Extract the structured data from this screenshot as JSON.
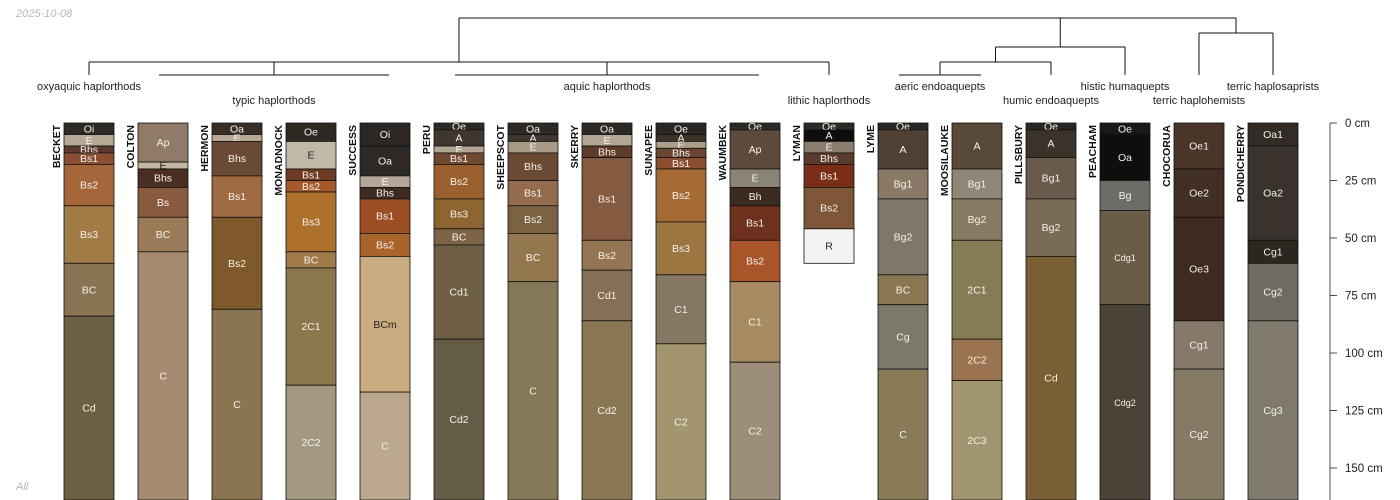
{
  "date_stamp": "2025-10-08",
  "corner_label": "All",
  "depth_axis": {
    "unit": "cm",
    "max_depth": 160,
    "ticks": [
      {
        "depth": 0,
        "label": "0 cm"
      },
      {
        "depth": 25,
        "label": "25 cm"
      },
      {
        "depth": 50,
        "label": "50 cm"
      },
      {
        "depth": 75,
        "label": "75 cm"
      },
      {
        "depth": 100,
        "label": "100 cm"
      },
      {
        "depth": 125,
        "label": "125 cm"
      },
      {
        "depth": 150,
        "label": "150 cm"
      }
    ]
  },
  "taxonomic_groups": [
    {
      "label": "oxyaquic haplorthods",
      "profiles": [
        "BECKET"
      ]
    },
    {
      "label": "typic haplorthods",
      "profiles": [
        "COLTON",
        "HERMON",
        "MONADNOCK",
        "SUCCESS"
      ]
    },
    {
      "label": "aquic haplorthods",
      "profiles": [
        "PERU",
        "SHEEPSCOT",
        "SKERRY",
        "SUNAPEE",
        "WAUMBEK"
      ]
    },
    {
      "label": "lithic haplorthods",
      "profiles": [
        "LYMAN"
      ]
    },
    {
      "label": "aeric endoaquepts",
      "profiles": [
        "LYME",
        "MOOSILAUKE"
      ]
    },
    {
      "label": "humic endoaquepts",
      "profiles": [
        "PILLSBURY"
      ]
    },
    {
      "label": "histic humaquepts",
      "profiles": [
        "PEACHAM"
      ]
    },
    {
      "label": "terric haplohemists",
      "profiles": [
        "CHOCORUA"
      ]
    },
    {
      "label": "terric haplosaprists",
      "profiles": [
        "PONDICHERRY"
      ]
    }
  ],
  "profiles": [
    {
      "name": "BECKET",
      "horizons": [
        {
          "name": "Oi",
          "top": 0,
          "bottom": 5,
          "color": "#2f2a25"
        },
        {
          "name": "E",
          "top": 5,
          "bottom": 10,
          "color": "#b5a895"
        },
        {
          "name": "Bhs",
          "top": 10,
          "bottom": 13,
          "color": "#5b3a2b"
        },
        {
          "name": "Bs1",
          "top": 13,
          "bottom": 18,
          "color": "#8a4e35"
        },
        {
          "name": "Bs2",
          "top": 18,
          "bottom": 36,
          "color": "#a6663c"
        },
        {
          "name": "Bs3",
          "top": 36,
          "bottom": 61,
          "color": "#a27c46"
        },
        {
          "name": "BC",
          "top": 61,
          "bottom": 84,
          "color": "#8a7352"
        },
        {
          "name": "Cd",
          "top": 84,
          "bottom": 165,
          "color": "#6c5f43"
        }
      ]
    },
    {
      "name": "COLTON",
      "horizons": [
        {
          "name": "Ap",
          "top": 0,
          "bottom": 17,
          "color": "#8f7b67"
        },
        {
          "name": "E",
          "top": 17,
          "bottom": 20,
          "color": "#c4b7a2"
        },
        {
          "name": "Bhs",
          "top": 20,
          "bottom": 28,
          "color": "#4a2e22"
        },
        {
          "name": "Bs",
          "top": 28,
          "bottom": 41,
          "color": "#8a5a3f"
        },
        {
          "name": "BC",
          "top": 41,
          "bottom": 56,
          "color": "#9c7b58"
        },
        {
          "name": "C",
          "top": 56,
          "bottom": 165,
          "color": "#a58c70"
        }
      ]
    },
    {
      "name": "HERMON",
      "horizons": [
        {
          "name": "Oa",
          "top": 0,
          "bottom": 5,
          "color": "#3a2f27"
        },
        {
          "name": "E",
          "top": 5,
          "bottom": 8,
          "color": "#b8aa96"
        },
        {
          "name": "Bhs",
          "top": 8,
          "bottom": 23,
          "color": "#6a4a35"
        },
        {
          "name": "Bs1",
          "top": 23,
          "bottom": 41,
          "color": "#a06a42"
        },
        {
          "name": "Bs2",
          "top": 41,
          "bottom": 81,
          "color": "#7e5a2a"
        },
        {
          "name": "C",
          "top": 81,
          "bottom": 165,
          "color": "#8a7550"
        }
      ]
    },
    {
      "name": "MONADNOCK",
      "horizons": [
        {
          "name": "Oe",
          "top": 0,
          "bottom": 8,
          "color": "#2e2823"
        },
        {
          "name": "E",
          "top": 8,
          "bottom": 20,
          "color": "#c2b8a8"
        },
        {
          "name": "Bs1",
          "top": 20,
          "bottom": 25,
          "color": "#6e3a24"
        },
        {
          "name": "Bs2",
          "top": 25,
          "bottom": 30,
          "color": "#a55a2c"
        },
        {
          "name": "Bs3",
          "top": 30,
          "bottom": 56,
          "color": "#ad6f2c"
        },
        {
          "name": "BC",
          "top": 56,
          "bottom": 63,
          "color": "#a07c4a"
        },
        {
          "name": "2C1",
          "top": 63,
          "bottom": 114,
          "color": "#8c774f"
        },
        {
          "name": "2C2",
          "top": 114,
          "bottom": 165,
          "color": "#a39880"
        }
      ]
    },
    {
      "name": "SUCCESS",
      "horizons": [
        {
          "name": "Oi",
          "top": 0,
          "bottom": 10,
          "color": "#2c2723"
        },
        {
          "name": "Oa",
          "top": 10,
          "bottom": 23,
          "color": "#2f2925"
        },
        {
          "name": "E",
          "top": 23,
          "bottom": 28,
          "color": "#b3a797"
        },
        {
          "name": "Bhs",
          "top": 28,
          "bottom": 33,
          "color": "#3e2a20"
        },
        {
          "name": "Bs1",
          "top": 33,
          "bottom": 48,
          "color": "#9a4e22"
        },
        {
          "name": "Bs2",
          "top": 48,
          "bottom": 58,
          "color": "#a9642a"
        },
        {
          "name": "BCm",
          "top": 58,
          "bottom": 117,
          "color": "#cbab80"
        },
        {
          "name": "C",
          "top": 117,
          "bottom": 165,
          "color": "#bba88e"
        }
      ]
    },
    {
      "name": "PERU",
      "horizons": [
        {
          "name": "Oe",
          "top": 0,
          "bottom": 3,
          "color": "#2e2a25"
        },
        {
          "name": "A",
          "top": 3,
          "bottom": 10,
          "color": "#3f362d"
        },
        {
          "name": "E",
          "top": 10,
          "bottom": 13,
          "color": "#b2a591"
        },
        {
          "name": "Bs1",
          "top": 13,
          "bottom": 18,
          "color": "#6e4a30"
        },
        {
          "name": "Bs2",
          "top": 18,
          "bottom": 33,
          "color": "#9a602e"
        },
        {
          "name": "Bs3",
          "top": 33,
          "bottom": 46,
          "color": "#8c6530"
        },
        {
          "name": "BC",
          "top": 46,
          "bottom": 53,
          "color": "#7d6445"
        },
        {
          "name": "Cd1",
          "top": 53,
          "bottom": 94,
          "color": "#6f5f42"
        },
        {
          "name": "Cd2",
          "top": 94,
          "bottom": 165,
          "color": "#655c48"
        }
      ]
    },
    {
      "name": "SHEEPSCOT",
      "horizons": [
        {
          "name": "Oa",
          "top": 0,
          "bottom": 5,
          "color": "#2e2925"
        },
        {
          "name": "A",
          "top": 5,
          "bottom": 8,
          "color": "#403630"
        },
        {
          "name": "E",
          "top": 8,
          "bottom": 13,
          "color": "#a89a87"
        },
        {
          "name": "Bhs",
          "top": 13,
          "bottom": 25,
          "color": "#6b4a34"
        },
        {
          "name": "Bs1",
          "top": 25,
          "bottom": 36,
          "color": "#946b4c"
        },
        {
          "name": "Bs2",
          "top": 36,
          "bottom": 48,
          "color": "#7a6242"
        },
        {
          "name": "BC",
          "top": 48,
          "bottom": 69,
          "color": "#93784f"
        },
        {
          "name": "C",
          "top": 69,
          "bottom": 165,
          "color": "#857856"
        }
      ]
    },
    {
      "name": "SKERRY",
      "horizons": [
        {
          "name": "Oa",
          "top": 0,
          "bottom": 5,
          "color": "#2e2925"
        },
        {
          "name": "E",
          "top": 5,
          "bottom": 10,
          "color": "#b1a594"
        },
        {
          "name": "Bhs",
          "top": 10,
          "bottom": 15,
          "color": "#5e3c2a"
        },
        {
          "name": "Bs1",
          "top": 15,
          "bottom": 51,
          "color": "#845a40"
        },
        {
          "name": "Bs2",
          "top": 51,
          "bottom": 64,
          "color": "#957553"
        },
        {
          "name": "Cd1",
          "top": 64,
          "bottom": 86,
          "color": "#857057"
        },
        {
          "name": "Cd2",
          "top": 86,
          "bottom": 165,
          "color": "#8a7854"
        }
      ]
    },
    {
      "name": "SUNAPEE",
      "horizons": [
        {
          "name": "Oe",
          "top": 0,
          "bottom": 5,
          "color": "#2c2723"
        },
        {
          "name": "A",
          "top": 5,
          "bottom": 8,
          "color": "#3b322a"
        },
        {
          "name": "E",
          "top": 8,
          "bottom": 11,
          "color": "#ac9f8c"
        },
        {
          "name": "Bhs",
          "top": 11,
          "bottom": 15,
          "color": "#6a4532"
        },
        {
          "name": "Bs1",
          "top": 15,
          "bottom": 20,
          "color": "#8a4e30"
        },
        {
          "name": "Bs2",
          "top": 20,
          "bottom": 43,
          "color": "#a66a35"
        },
        {
          "name": "Bs3",
          "top": 43,
          "bottom": 66,
          "color": "#9c7641"
        },
        {
          "name": "C1",
          "top": 66,
          "bottom": 96,
          "color": "#857762"
        },
        {
          "name": "C2",
          "top": 96,
          "bottom": 165,
          "color": "#a3956f"
        }
      ]
    },
    {
      "name": "WAUMBEK",
      "horizons": [
        {
          "name": "Oe",
          "top": 0,
          "bottom": 3,
          "color": "#2e2a25"
        },
        {
          "name": "Ap",
          "top": 3,
          "bottom": 20,
          "color": "#5d4a3a"
        },
        {
          "name": "E",
          "top": 20,
          "bottom": 28,
          "color": "#8a8478"
        },
        {
          "name": "Bh",
          "top": 28,
          "bottom": 36,
          "color": "#3a2a20"
        },
        {
          "name": "Bs1",
          "top": 36,
          "bottom": 51,
          "color": "#6d311d"
        },
        {
          "name": "Bs2",
          "top": 51,
          "bottom": 69,
          "color": "#a8552a"
        },
        {
          "name": "C1",
          "top": 69,
          "bottom": 104,
          "color": "#a88b62"
        },
        {
          "name": "C2",
          "top": 104,
          "bottom": 165,
          "color": "#9c8e78"
        }
      ]
    },
    {
      "name": "LYMAN",
      "horizons": [
        {
          "name": "Oe",
          "top": 0,
          "bottom": 3,
          "color": "#2e2a25"
        },
        {
          "name": "A",
          "top": 3,
          "bottom": 8,
          "color": "#0e0d0c"
        },
        {
          "name": "E",
          "top": 8,
          "bottom": 13,
          "color": "#8a7e6f"
        },
        {
          "name": "Bhs",
          "top": 13,
          "bottom": 18,
          "color": "#5a3a2b"
        },
        {
          "name": "Bs1",
          "top": 18,
          "bottom": 28,
          "color": "#7a2e1a"
        },
        {
          "name": "Bs2",
          "top": 28,
          "bottom": 46,
          "color": "#7d5738"
        },
        {
          "name": "R",
          "top": 46,
          "bottom": 61,
          "color": "#f2f2f2"
        }
      ]
    },
    {
      "name": "LYME",
      "horizons": [
        {
          "name": "Oe",
          "top": 0,
          "bottom": 3,
          "color": "#2c2723"
        },
        {
          "name": "A",
          "top": 3,
          "bottom": 20,
          "color": "#4e4034"
        },
        {
          "name": "Bg1",
          "top": 20,
          "bottom": 33,
          "color": "#8a7a65"
        },
        {
          "name": "Bg2",
          "top": 33,
          "bottom": 66,
          "color": "#7f7868"
        },
        {
          "name": "BC",
          "top": 66,
          "bottom": 79,
          "color": "#8a7652"
        },
        {
          "name": "Cg",
          "top": 79,
          "bottom": 107,
          "color": "#7d786c"
        },
        {
          "name": "C",
          "top": 107,
          "bottom": 165,
          "color": "#897a58"
        }
      ]
    },
    {
      "name": "MOOSILAUKE",
      "horizons": [
        {
          "name": "A",
          "top": 0,
          "bottom": 20,
          "color": "#574838"
        },
        {
          "name": "Bg1",
          "top": 20,
          "bottom": 33,
          "color": "#8e8776"
        },
        {
          "name": "Bg2",
          "top": 33,
          "bottom": 51,
          "color": "#877b63"
        },
        {
          "name": "2C1",
          "top": 51,
          "bottom": 94,
          "color": "#857c55"
        },
        {
          "name": "2C2",
          "top": 94,
          "bottom": 112,
          "color": "#9a7450"
        },
        {
          "name": "2C3",
          "top": 112,
          "bottom": 165,
          "color": "#a29670"
        }
      ]
    },
    {
      "name": "PILLSBURY",
      "horizons": [
        {
          "name": "Oe",
          "top": 0,
          "bottom": 3,
          "color": "#2c2723"
        },
        {
          "name": "A",
          "top": 3,
          "bottom": 15,
          "color": "#3b322a"
        },
        {
          "name": "Bg1",
          "top": 15,
          "bottom": 33,
          "color": "#6a5a4b"
        },
        {
          "name": "Bg2",
          "top": 33,
          "bottom": 58,
          "color": "#7a6b56"
        },
        {
          "name": "Cd",
          "top": 58,
          "bottom": 165,
          "color": "#7a5e34"
        }
      ]
    },
    {
      "name": "PEACHAM",
      "horizons": [
        {
          "name": "Oe",
          "top": 0,
          "bottom": 5,
          "color": "#1a1816"
        },
        {
          "name": "Oa",
          "top": 5,
          "bottom": 25,
          "color": "#0f0e0d"
        },
        {
          "name": "Bg",
          "top": 25,
          "bottom": 38,
          "color": "#6b6d67"
        },
        {
          "name": "Cdg1",
          "top": 38,
          "bottom": 79,
          "color": "#6a5d48"
        },
        {
          "name": "Cdg2",
          "top": 79,
          "bottom": 165,
          "color": "#4a4336"
        }
      ]
    },
    {
      "name": "CHOCORUA",
      "horizons": [
        {
          "name": "Oe1",
          "top": 0,
          "bottom": 20,
          "color": "#4a3628"
        },
        {
          "name": "Oe2",
          "top": 20,
          "bottom": 41,
          "color": "#422f24"
        },
        {
          "name": "Oe3",
          "top": 41,
          "bottom": 86,
          "color": "#3e2a20"
        },
        {
          "name": "Cg1",
          "top": 86,
          "bottom": 107,
          "color": "#857a6a"
        },
        {
          "name": "Cg2",
          "top": 107,
          "bottom": 165,
          "color": "#847a66"
        }
      ]
    },
    {
      "name": "PONDICHERRY",
      "horizons": [
        {
          "name": "Oa1",
          "top": 0,
          "bottom": 10,
          "color": "#322b26"
        },
        {
          "name": "Oa2",
          "top": 10,
          "bottom": 51,
          "color": "#3a332d"
        },
        {
          "name": "Cg1",
          "top": 51,
          "bottom": 61,
          "color": "#2c261f"
        },
        {
          "name": "Cg2",
          "top": 61,
          "bottom": 86,
          "color": "#6f6b60"
        },
        {
          "name": "Cg3",
          "top": 86,
          "bottom": 165,
          "color": "#7f7a6c"
        }
      ]
    }
  ]
}
